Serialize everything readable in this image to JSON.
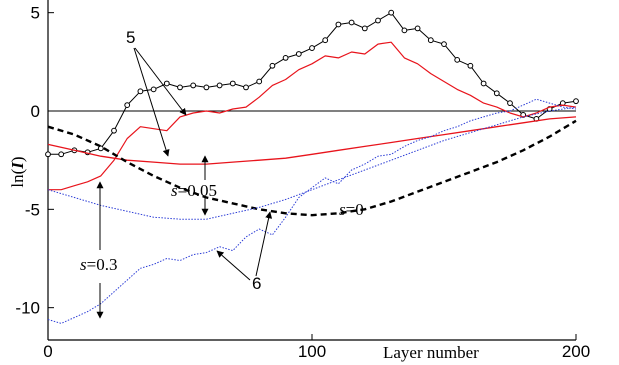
{
  "chart_data": {
    "type": "line",
    "title": "",
    "xlabel": "Layer number",
    "ylabel_prefix": "ln(",
    "ylabel_var": "I",
    "ylabel_suffix": ")",
    "xlim": [
      0,
      200
    ],
    "ylim": [
      -11,
      5.5
    ],
    "xticks": [
      0,
      100,
      200
    ],
    "yticks": [
      5,
      0,
      -5,
      -10
    ],
    "xtick_labels": [
      "0",
      "100",
      "200"
    ],
    "ytick_labels": [
      "5",
      "0",
      "-5",
      "-10"
    ],
    "grid": false,
    "legend": "none",
    "annotations": [
      {
        "text": "5"
      },
      {
        "text": "6"
      },
      {
        "text_var": "s",
        "text_rest": "=0.05"
      },
      {
        "text_var": "s",
        "text_rest": "=0"
      },
      {
        "text_var": "s",
        "text_rest": "=0.3"
      }
    ],
    "series": [
      {
        "style": "black-circle-markers",
        "color": "#000000",
        "x": [
          0,
          5,
          10,
          15,
          20,
          25,
          30,
          35,
          40,
          45,
          50,
          55,
          60,
          65,
          70,
          75,
          80,
          85,
          90,
          95,
          100,
          105,
          110,
          115,
          120,
          125,
          130,
          135,
          140,
          145,
          150,
          155,
          160,
          165,
          170,
          175,
          180,
          185,
          190,
          195,
          200
        ],
        "y": [
          -2.2,
          -2.2,
          -2.0,
          -2.1,
          -1.9,
          -1.0,
          0.3,
          1.0,
          1.1,
          1.4,
          1.2,
          1.3,
          1.2,
          1.3,
          1.4,
          1.2,
          1.5,
          2.3,
          2.7,
          2.9,
          3.2,
          3.6,
          4.4,
          4.5,
          4.2,
          4.6,
          5.0,
          4.1,
          4.2,
          3.6,
          3.4,
          2.6,
          2.3,
          1.4,
          0.9,
          0.4,
          -0.2,
          -0.4,
          0.1,
          0.4,
          0.5
        ]
      },
      {
        "style": "red-solid-jagged",
        "color": "#e8141c",
        "x": [
          0,
          5,
          10,
          15,
          20,
          25,
          30,
          35,
          40,
          45,
          50,
          55,
          60,
          65,
          70,
          75,
          80,
          85,
          90,
          95,
          100,
          105,
          110,
          115,
          120,
          125,
          130,
          135,
          140,
          145,
          150,
          155,
          160,
          165,
          170,
          175,
          180,
          185,
          190,
          195,
          200
        ],
        "y": [
          -4.0,
          -4.0,
          -3.8,
          -3.6,
          -3.3,
          -2.5,
          -1.4,
          -0.8,
          -0.9,
          -1.0,
          -0.3,
          -0.1,
          0.0,
          -0.1,
          0.1,
          0.2,
          0.7,
          1.3,
          1.6,
          2.1,
          2.4,
          2.8,
          2.7,
          3.0,
          2.9,
          3.4,
          3.5,
          2.7,
          2.4,
          1.9,
          1.5,
          1.1,
          0.8,
          0.4,
          0.2,
          -0.1,
          -0.3,
          -0.1,
          0.2,
          0.3,
          0.2
        ]
      },
      {
        "style": "red-solid-smooth",
        "color": "#e8141c",
        "x": [
          0,
          10,
          20,
          30,
          40,
          50,
          60,
          70,
          80,
          90,
          100,
          110,
          120,
          130,
          140,
          150,
          160,
          170,
          180,
          190,
          200
        ],
        "y": [
          -1.7,
          -2.0,
          -2.3,
          -2.5,
          -2.6,
          -2.7,
          -2.7,
          -2.6,
          -2.5,
          -2.4,
          -2.2,
          -2.0,
          -1.8,
          -1.6,
          -1.4,
          -1.2,
          -1.0,
          -0.8,
          -0.6,
          -0.4,
          -0.3
        ]
      },
      {
        "style": "black-dashed",
        "color": "#000000",
        "x": [
          0,
          10,
          20,
          30,
          40,
          50,
          60,
          70,
          80,
          90,
          100,
          110,
          120,
          130,
          140,
          150,
          160,
          170,
          180,
          190,
          200
        ],
        "y": [
          -0.8,
          -1.2,
          -1.8,
          -2.6,
          -3.3,
          -3.9,
          -4.4,
          -4.7,
          -5.0,
          -5.2,
          -5.3,
          -5.2,
          -5.0,
          -4.6,
          -4.1,
          -3.6,
          -3.1,
          -2.6,
          -2.0,
          -1.3,
          -0.5
        ]
      },
      {
        "style": "blue-dotted-smooth",
        "color": "#2b3cd6",
        "x": [
          0,
          10,
          20,
          30,
          40,
          50,
          60,
          70,
          80,
          90,
          100,
          110,
          120,
          130,
          140,
          150,
          160,
          170,
          180,
          190,
          200
        ],
        "y": [
          -4.0,
          -4.4,
          -4.8,
          -5.1,
          -5.4,
          -5.5,
          -5.5,
          -5.2,
          -4.9,
          -4.5,
          -4.0,
          -3.5,
          -3.0,
          -2.5,
          -2.0,
          -1.5,
          -1.1,
          -0.7,
          -0.3,
          0.0,
          0.2
        ]
      },
      {
        "style": "blue-dotted-jagged",
        "color": "#2b3cd6",
        "x": [
          0,
          5,
          10,
          15,
          20,
          25,
          30,
          35,
          40,
          45,
          50,
          55,
          60,
          65,
          70,
          75,
          80,
          85,
          90,
          95,
          100,
          105,
          110,
          115,
          120,
          125,
          130,
          135,
          140,
          145,
          150,
          155,
          160,
          165,
          170,
          175,
          180,
          185,
          190,
          195,
          200
        ],
        "y": [
          -10.6,
          -10.8,
          -10.5,
          -10.2,
          -9.8,
          -9.2,
          -8.6,
          -8.0,
          -7.8,
          -7.5,
          -7.6,
          -7.3,
          -7.2,
          -6.9,
          -7.1,
          -6.4,
          -6.0,
          -6.3,
          -5.4,
          -4.4,
          -3.9,
          -3.4,
          -3.7,
          -3.0,
          -2.7,
          -2.3,
          -2.2,
          -1.8,
          -1.5,
          -1.3,
          -1.0,
          -0.8,
          -0.5,
          -0.3,
          -0.1,
          0.0,
          0.3,
          0.6,
          0.4,
          0.2,
          0.1
        ]
      }
    ]
  }
}
